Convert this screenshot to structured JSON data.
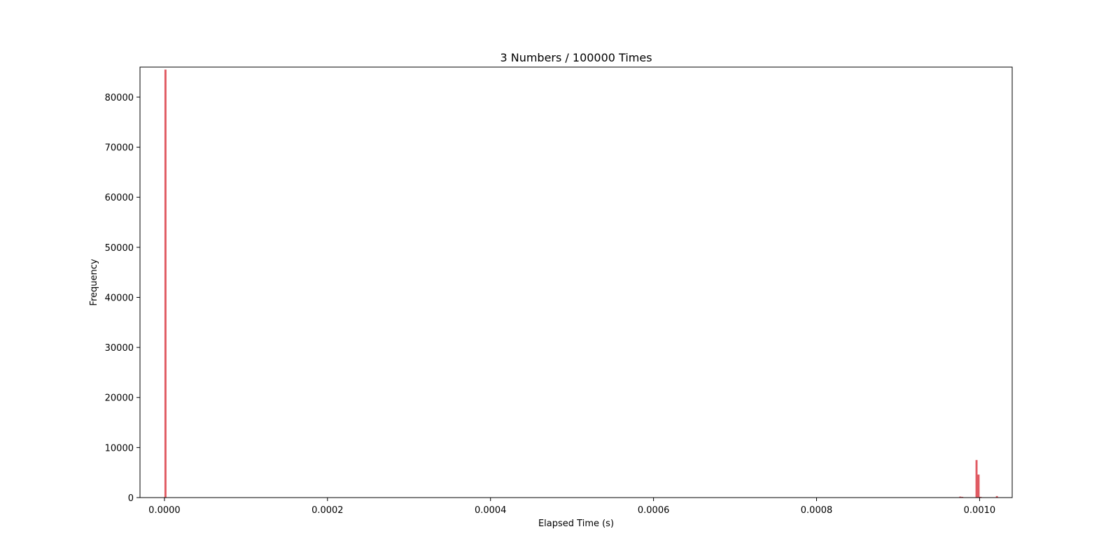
{
  "chart_data": {
    "type": "bar",
    "title": "3 Numbers / 100000 Times",
    "xlabel": "Elapsed Time (s)",
    "ylabel": "Frequency",
    "xlim": [
      -3e-05,
      0.00104
    ],
    "ylim": [
      0,
      86000
    ],
    "x_ticks": [
      0.0,
      0.0002,
      0.0004,
      0.0006,
      0.0008,
      0.001
    ],
    "x_tick_labels": [
      "0.0000",
      "0.0002",
      "0.0004",
      "0.0006",
      "0.0008",
      "0.0010"
    ],
    "y_ticks": [
      0,
      10000,
      20000,
      30000,
      40000,
      50000,
      60000,
      70000,
      80000
    ],
    "y_tick_labels": [
      "0",
      "10000",
      "20000",
      "30000",
      "40000",
      "50000",
      "60000",
      "70000",
      "80000"
    ],
    "bin_width": 2.5e-06,
    "color": "#e05a62",
    "grid": false,
    "bins": [
      {
        "x": 0.0,
        "count": 85500
      },
      {
        "x": 0.000975,
        "count": 200
      },
      {
        "x": 0.0009775,
        "count": 150
      },
      {
        "x": 0.000995,
        "count": 7500
      },
      {
        "x": 0.0009975,
        "count": 4600
      },
      {
        "x": 0.001,
        "count": 150
      },
      {
        "x": 0.00102,
        "count": 300
      }
    ]
  }
}
